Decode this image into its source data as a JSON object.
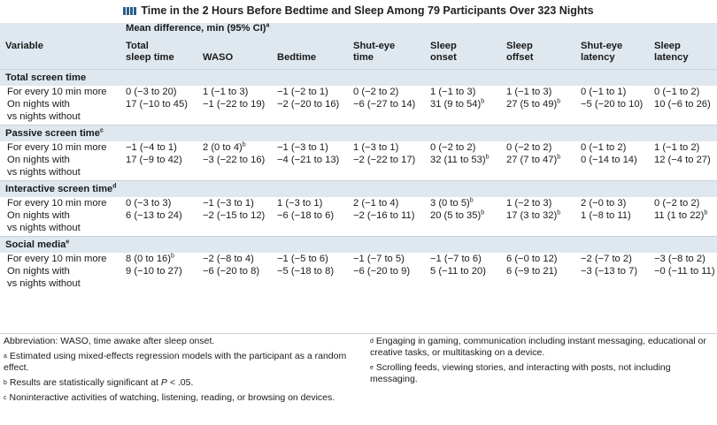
{
  "title": "Time in the 2 Hours Before Bedtime and Sleep Among 79 Participants Over 323 Nights",
  "header": {
    "group_label": "Mean difference, min (95% CI)",
    "group_label_sup": "a",
    "variable": "Variable",
    "columns": [
      [
        "Total",
        "sleep time"
      ],
      [
        "",
        "WASO"
      ],
      [
        "",
        "Bedtime"
      ],
      [
        "Shut-eye",
        "time"
      ],
      [
        "Sleep",
        "onset"
      ],
      [
        "Sleep",
        "offset"
      ],
      [
        "Shut-eye",
        "latency"
      ],
      [
        "Sleep",
        "latency"
      ]
    ]
  },
  "sections": [
    {
      "name": "Total screen time",
      "sup": "",
      "rows": [
        {
          "label": [
            "For every 10 min more"
          ],
          "cells": [
            [
              "0 (−3 to 20)",
              ""
            ],
            [
              "1 (−1 to 3)",
              ""
            ],
            [
              "−1 (−2 to 1)",
              ""
            ],
            [
              "0 (−2 to 2)",
              ""
            ],
            [
              "1 (−1 to 3)",
              ""
            ],
            [
              "1 (−1 to 3)",
              ""
            ],
            [
              "0 (−1 to 1)",
              ""
            ],
            [
              "0 (−1 to 2)",
              ""
            ]
          ]
        },
        {
          "label": [
            "On nights with",
            "vs nights without"
          ],
          "cells": [
            [
              "17 (−10 to 45)",
              ""
            ],
            [
              "−1 (−22 to 19)",
              ""
            ],
            [
              "−2 (−20 to 16)",
              ""
            ],
            [
              "−6 (−27 to 14)",
              ""
            ],
            [
              "31 (9 to 54)",
              "b"
            ],
            [
              "27 (5 to 49)",
              "b"
            ],
            [
              "−5 (−20 to 10)",
              ""
            ],
            [
              "10 (−6 to 26)",
              ""
            ]
          ]
        }
      ]
    },
    {
      "name": "Passive screen time",
      "sup": "c",
      "rows": [
        {
          "label": [
            "For every 10 min more"
          ],
          "cells": [
            [
              "−1 (−4 to 1)",
              ""
            ],
            [
              "2 (0 to 4)",
              "b"
            ],
            [
              "−1 (−3 to 1)",
              ""
            ],
            [
              "1 (−3 to 1)",
              ""
            ],
            [
              "0 (−2 to 2)",
              ""
            ],
            [
              "0 (−2 to 2)",
              ""
            ],
            [
              "0 (−1 to 2)",
              ""
            ],
            [
              "1 (−1 to 2)",
              ""
            ]
          ]
        },
        {
          "label": [
            "On nights with",
            "vs nights without"
          ],
          "cells": [
            [
              "17 (−9 to 42)",
              ""
            ],
            [
              "−3 (−22 to 16)",
              ""
            ],
            [
              "−4 (−21 to 13)",
              ""
            ],
            [
              "−2 (−22 to 17)",
              ""
            ],
            [
              "32 (11 to 53)",
              "b"
            ],
            [
              "27 (7 to 47)",
              "b"
            ],
            [
              "0 (−14 to 14)",
              ""
            ],
            [
              "12 (−4 to 27)",
              ""
            ]
          ]
        }
      ]
    },
    {
      "name": "Interactive screen time",
      "sup": "d",
      "rows": [
        {
          "label": [
            "For every 10 min more"
          ],
          "cells": [
            [
              "0 (−3 to 3)",
              ""
            ],
            [
              "−1 (−3 to 1)",
              ""
            ],
            [
              "1 (−3 to 1)",
              ""
            ],
            [
              "2 (−1 to 4)",
              ""
            ],
            [
              "3 (0 to 5)",
              "b"
            ],
            [
              "1 (−2 to 3)",
              ""
            ],
            [
              "2 (−0 to 3)",
              ""
            ],
            [
              "0 (−2 to 2)",
              ""
            ]
          ]
        },
        {
          "label": [
            "On nights with",
            "vs nights without"
          ],
          "cells": [
            [
              "6 (−13 to 24)",
              ""
            ],
            [
              "−2 (−15 to 12)",
              ""
            ],
            [
              "−6 (−18 to 6)",
              ""
            ],
            [
              "−2 (−16 to 11)",
              ""
            ],
            [
              "20 (5 to 35)",
              "b"
            ],
            [
              "17 (3 to 32)",
              "b"
            ],
            [
              "1 (−8 to 11)",
              ""
            ],
            [
              "11 (1 to 22)",
              "b"
            ]
          ]
        }
      ]
    },
    {
      "name": "Social media",
      "sup": "e",
      "rows": [
        {
          "label": [
            "For every 10 min more"
          ],
          "cells": [
            [
              "8 (0 to 16)",
              "b"
            ],
            [
              "−2 (−8 to 4)",
              ""
            ],
            [
              "−1 (−5 to 6)",
              ""
            ],
            [
              "−1 (−7 to 5)",
              ""
            ],
            [
              "−1 (−7 to 6)",
              ""
            ],
            [
              "6 (−0 to 12)",
              ""
            ],
            [
              "−2 (−7 to 2)",
              ""
            ],
            [
              "−3 (−8 to 2)",
              ""
            ]
          ]
        },
        {
          "label": [
            "On nights with",
            "vs nights without"
          ],
          "cells": [
            [
              "9 (−10 to 27)",
              ""
            ],
            [
              "−6 (−20 to 8)",
              ""
            ],
            [
              "−5 (−18 to 8)",
              ""
            ],
            [
              "−6 (−20 to 9)",
              ""
            ],
            [
              "5 (−11 to 20)",
              ""
            ],
            [
              "6 (−9 to 21)",
              ""
            ],
            [
              "−3 (−13 to 7)",
              ""
            ],
            [
              "−0 (−11 to 11)",
              ""
            ]
          ]
        }
      ]
    }
  ],
  "footnotes": {
    "abbrev": "Abbreviation: WASO, time awake after sleep onset.",
    "a": "Estimated using mixed-effects regression models with the participant as a random effect.",
    "b_pre": "Results are statistically significant at ",
    "b_p": "P",
    "b_post": " < .05.",
    "c": "Noninteractive activities of watching, listening, reading, or browsing on devices.",
    "d": "Engaging in gaming, communication including instant messaging, educational or creative tasks, or multitasking on a device.",
    "e": "Scrolling feeds, viewing stories, and interacting with posts, not including messaging."
  }
}
